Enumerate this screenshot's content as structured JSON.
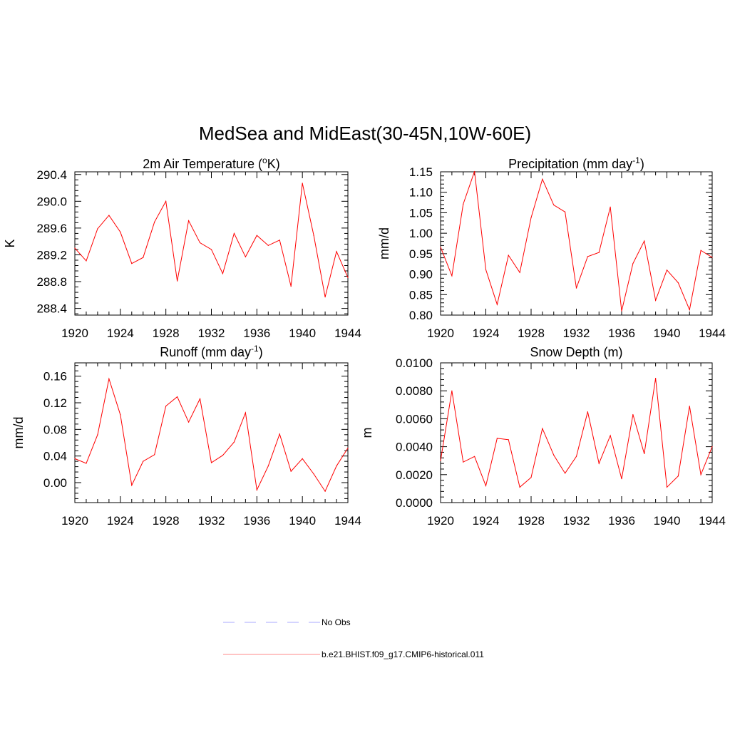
{
  "title": "MedSea and MidEast(30-45N,10W-60E)",
  "legend": {
    "items": [
      {
        "label": "No Obs",
        "color": "#aaaaff",
        "style": "dashed"
      },
      {
        "label": "b.e21.BHIST.f09_g17.CMIP6-historical.011",
        "color": "#ff8888",
        "style": "solid"
      }
    ]
  },
  "chart_data": [
    {
      "type": "line",
      "title_parts": [
        "2m Air Temperature (",
        "o",
        "K)"
      ],
      "ylabel": "K",
      "x": [
        1920,
        1921,
        1922,
        1923,
        1924,
        1925,
        1926,
        1927,
        1928,
        1929,
        1930,
        1931,
        1932,
        1933,
        1934,
        1935,
        1936,
        1937,
        1938,
        1939,
        1940,
        1941,
        1942,
        1943,
        1944
      ],
      "xlim": [
        1920,
        1944
      ],
      "ylim": [
        288.3,
        290.44
      ],
      "xticks": [
        "1920",
        "1924",
        "1928",
        "1932",
        "1936",
        "1940",
        "1944"
      ],
      "yticks": [
        "288.4",
        "288.8",
        "289.2",
        "289.6",
        "290.0",
        "290.4"
      ],
      "series": [
        {
          "color": "#ff0000",
          "values": [
            289.3,
            289.11,
            289.59,
            289.79,
            289.54,
            289.07,
            289.16,
            289.69,
            290.0,
            288.81,
            289.71,
            289.38,
            289.28,
            288.92,
            289.52,
            289.17,
            289.49,
            289.34,
            289.42,
            288.73,
            290.27,
            289.49,
            288.57,
            289.25,
            288.86
          ]
        }
      ]
    },
    {
      "type": "line",
      "title_parts": [
        "Precipitation (mm day",
        "-1",
        ")"
      ],
      "ylabel": "mm/d",
      "x": [
        1920,
        1921,
        1922,
        1923,
        1924,
        1925,
        1926,
        1927,
        1928,
        1929,
        1930,
        1931,
        1932,
        1933,
        1934,
        1935,
        1936,
        1937,
        1938,
        1939,
        1940,
        1941,
        1942,
        1943,
        1944
      ],
      "xlim": [
        1920,
        1944
      ],
      "ylim": [
        0.8,
        1.15
      ],
      "xticks": [
        "1920",
        "1924",
        "1928",
        "1932",
        "1936",
        "1940",
        "1944"
      ],
      "yticks": [
        "0.80",
        "0.85",
        "0.90",
        "0.95",
        "1.00",
        "1.05",
        "1.10",
        "1.15"
      ],
      "series": [
        {
          "color": "#ff0000",
          "values": [
            0.966,
            0.896,
            1.071,
            1.151,
            0.911,
            0.826,
            0.946,
            0.904,
            1.038,
            1.132,
            1.069,
            1.052,
            0.866,
            0.943,
            0.953,
            1.064,
            0.81,
            0.926,
            0.981,
            0.836,
            0.91,
            0.879,
            0.813,
            0.958,
            0.941
          ]
        }
      ]
    },
    {
      "type": "line",
      "title_parts": [
        "Runoff (mm day",
        "-1",
        ")"
      ],
      "ylabel": "mm/d",
      "x": [
        1920,
        1921,
        1922,
        1923,
        1924,
        1925,
        1926,
        1927,
        1928,
        1929,
        1930,
        1931,
        1932,
        1933,
        1934,
        1935,
        1936,
        1937,
        1938,
        1939,
        1940,
        1941,
        1942,
        1943,
        1944
      ],
      "xlim": [
        1920,
        1944
      ],
      "ylim": [
        -0.03,
        0.18
      ],
      "xticks": [
        "1920",
        "1924",
        "1928",
        "1932",
        "1936",
        "1940",
        "1944"
      ],
      "yticks": [
        "0.00",
        "0.04",
        "0.08",
        "0.12",
        "0.16"
      ],
      "series": [
        {
          "color": "#ff0000",
          "values": [
            0.036,
            0.029,
            0.072,
            0.156,
            0.102,
            -0.004,
            0.032,
            0.042,
            0.115,
            0.129,
            0.091,
            0.126,
            0.03,
            0.041,
            0.061,
            0.105,
            -0.011,
            0.025,
            0.073,
            0.017,
            0.036,
            0.013,
            -0.013,
            0.025,
            0.052
          ]
        }
      ]
    },
    {
      "type": "line",
      "title_parts": [
        "Snow Depth (m)"
      ],
      "ylabel": "m",
      "x": [
        1920,
        1921,
        1922,
        1923,
        1924,
        1925,
        1926,
        1927,
        1928,
        1929,
        1930,
        1931,
        1932,
        1933,
        1934,
        1935,
        1936,
        1937,
        1938,
        1939,
        1940,
        1941,
        1942,
        1943,
        1944
      ],
      "xlim": [
        1920,
        1944
      ],
      "ylim": [
        0.0,
        0.01
      ],
      "xticks": [
        "1920",
        "1924",
        "1928",
        "1932",
        "1936",
        "1940",
        "1944"
      ],
      "yticks": [
        "0.0000",
        "0.0020",
        "0.0040",
        "0.0060",
        "0.0080",
        "0.0100"
      ],
      "series": [
        {
          "color": "#ff0000",
          "values": [
            0.003,
            0.008,
            0.0029,
            0.0033,
            0.0012,
            0.0046,
            0.0045,
            0.0011,
            0.0018,
            0.0053,
            0.0034,
            0.0021,
            0.0033,
            0.0065,
            0.0028,
            0.0048,
            0.0017,
            0.0063,
            0.0035,
            0.0089,
            0.0011,
            0.0019,
            0.0069,
            0.002,
            0.004
          ]
        }
      ]
    }
  ]
}
